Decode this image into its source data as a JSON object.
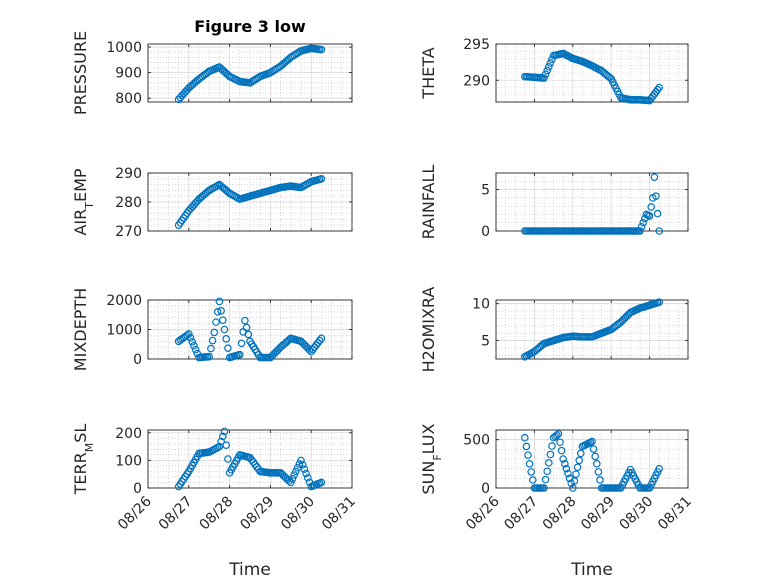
{
  "figure": {
    "title": "Figure 3 low"
  },
  "colors": {
    "marker": "#0072BD",
    "axis": "#262626"
  },
  "chart_data": [
    {
      "type": "scatter",
      "ylabel": "PRESSURE",
      "ylim": [
        785,
        1012
      ],
      "yticks": [
        800,
        900,
        1000
      ],
      "xticks_labels": false,
      "title": "Figure 3 low",
      "grid": true,
      "minor_grid": true,
      "x": [
        "08/26 18:00",
        "08/27 00:00",
        "08/27 06:00",
        "08/27 12:00",
        "08/27 18:00",
        "08/28 00:00",
        "08/28 06:00",
        "08/28 12:00",
        "08/28 18:00",
        "08/29 00:00",
        "08/29 06:00",
        "08/29 12:00",
        "08/29 18:00",
        "08/30 00:00",
        "08/30 06:00"
      ],
      "y": [
        795,
        840,
        875,
        905,
        922,
        885,
        865,
        860,
        885,
        900,
        925,
        960,
        985,
        995,
        990
      ]
    },
    {
      "type": "scatter",
      "ylabel": "THETA",
      "ylim": [
        287,
        295
      ],
      "yticks": [
        290,
        295
      ],
      "xticks_labels": false,
      "grid": true,
      "minor_grid": true,
      "x": [
        "08/26 18:00",
        "08/27 00:00",
        "08/27 06:00",
        "08/27 12:00",
        "08/27 18:00",
        "08/28 00:00",
        "08/28 06:00",
        "08/28 12:00",
        "08/28 18:00",
        "08/29 00:00",
        "08/29 06:00",
        "08/29 12:00",
        "08/29 18:00",
        "08/30 00:00",
        "08/30 06:00"
      ],
      "y": [
        290.5,
        290.4,
        290.3,
        293.4,
        293.7,
        293.0,
        292.6,
        292.0,
        291.3,
        290.2,
        287.6,
        287.3,
        287.3,
        287.2,
        289.0
      ]
    },
    {
      "type": "scatter",
      "ylabel": "AIR_TEMP",
      "ylim": [
        270,
        290
      ],
      "yticks": [
        270,
        280,
        290
      ],
      "xticks_labels": false,
      "grid": true,
      "minor_grid": true,
      "x": [
        "08/26 18:00",
        "08/27 00:00",
        "08/27 06:00",
        "08/27 12:00",
        "08/27 18:00",
        "08/28 00:00",
        "08/28 06:00",
        "08/28 12:00",
        "08/28 18:00",
        "08/29 00:00",
        "08/29 06:00",
        "08/29 12:00",
        "08/29 18:00",
        "08/30 00:00",
        "08/30 06:00"
      ],
      "y": [
        272,
        277,
        281,
        284,
        286,
        283,
        281,
        282,
        283,
        284,
        285,
        285.5,
        285,
        287,
        288
      ]
    },
    {
      "type": "scatter",
      "ylabel": "RAINFALL",
      "ylim": [
        0,
        7
      ],
      "yticks": [
        0,
        5
      ],
      "xticks_labels": false,
      "grid": true,
      "minor_grid": true,
      "x": [
        "08/26 18:00",
        "08/27 06:00",
        "08/27 18:00",
        "08/28 06:00",
        "08/28 18:00",
        "08/29 06:00",
        "08/29 18:00",
        "08/29 22:00",
        "08/30 00:00",
        "08/30 02:00",
        "08/30 03:00",
        "08/30 04:00",
        "08/30 06:00"
      ],
      "y": [
        0,
        0,
        0,
        0,
        0,
        0,
        0,
        2.0,
        1.8,
        4.0,
        6.5,
        4.2,
        0
      ]
    },
    {
      "type": "scatter",
      "ylabel": "MIXDEPTH",
      "ylim": [
        0,
        2000
      ],
      "yticks": [
        0,
        1000,
        2000
      ],
      "xticks_labels": false,
      "grid": true,
      "minor_grid": true,
      "x": [
        "08/26 18:00",
        "08/27 00:00",
        "08/27 06:00",
        "08/27 12:00",
        "08/27 15:00",
        "08/27 18:00",
        "08/28 00:00",
        "08/28 06:00",
        "08/28 09:00",
        "08/28 12:00",
        "08/28 18:00",
        "08/29 00:00",
        "08/29 06:00",
        "08/29 12:00",
        "08/29 18:00",
        "08/30 00:00",
        "08/30 06:00"
      ],
      "y": [
        600,
        850,
        50,
        80,
        900,
        1950,
        50,
        150,
        1300,
        600,
        50,
        50,
        400,
        700,
        600,
        250,
        700
      ]
    },
    {
      "type": "scatter",
      "ylabel": "H2OMIXRA",
      "ylim": [
        2.5,
        10.5
      ],
      "yticks": [
        5,
        10
      ],
      "xticks_labels": false,
      "grid": true,
      "minor_grid": true,
      "x": [
        "08/26 18:00",
        "08/27 00:00",
        "08/27 06:00",
        "08/27 12:00",
        "08/27 18:00",
        "08/28 00:00",
        "08/28 06:00",
        "08/28 12:00",
        "08/28 18:00",
        "08/29 00:00",
        "08/29 06:00",
        "08/29 12:00",
        "08/29 18:00",
        "08/30 00:00",
        "08/30 06:00"
      ],
      "y": [
        2.8,
        3.5,
        4.6,
        5.0,
        5.4,
        5.6,
        5.5,
        5.5,
        6.0,
        6.5,
        7.5,
        8.8,
        9.4,
        9.8,
        10.2
      ]
    },
    {
      "type": "scatter",
      "ylabel": "TERR_MSL",
      "ylim": [
        0,
        210
      ],
      "yticks": [
        0,
        100,
        200
      ],
      "xticks": [
        "08/26",
        "08/27",
        "08/28",
        "08/29",
        "08/30",
        "08/31"
      ],
      "xlabel": "Time",
      "grid": true,
      "minor_grid": true,
      "x": [
        "08/26 18:00",
        "08/27 00:00",
        "08/27 06:00",
        "08/27 12:00",
        "08/27 18:00",
        "08/27 21:00",
        "08/28 00:00",
        "08/28 06:00",
        "08/28 12:00",
        "08/28 18:00",
        "08/29 00:00",
        "08/29 06:00",
        "08/29 12:00",
        "08/29 18:00",
        "08/30 00:00",
        "08/30 06:00"
      ],
      "y": [
        5,
        60,
        125,
        130,
        150,
        205,
        55,
        120,
        110,
        60,
        55,
        55,
        20,
        100,
        5,
        20
      ]
    },
    {
      "type": "scatter",
      "ylabel": "SUN_FLUX",
      "ylim": [
        0,
        600
      ],
      "yticks": [
        0,
        500
      ],
      "xticks": [
        "08/26",
        "08/27",
        "08/28",
        "08/29",
        "08/30",
        "08/31"
      ],
      "xlabel": "Time",
      "grid": true,
      "minor_grid": true,
      "x": [
        "08/26 18:00",
        "08/26 21:00",
        "08/27 00:00",
        "08/27 06:00",
        "08/27 12:00",
        "08/27 15:00",
        "08/27 18:00",
        "08/28 00:00",
        "08/28 06:00",
        "08/28 12:00",
        "08/28 15:00",
        "08/28 18:00",
        "08/29 00:00",
        "08/29 06:00",
        "08/29 12:00",
        "08/29 18:00",
        "08/30 00:00",
        "08/30 06:00"
      ],
      "y": [
        520,
        250,
        0,
        0,
        520,
        560,
        300,
        0,
        430,
        480,
        250,
        0,
        0,
        0,
        190,
        0,
        0,
        200
      ]
    }
  ]
}
